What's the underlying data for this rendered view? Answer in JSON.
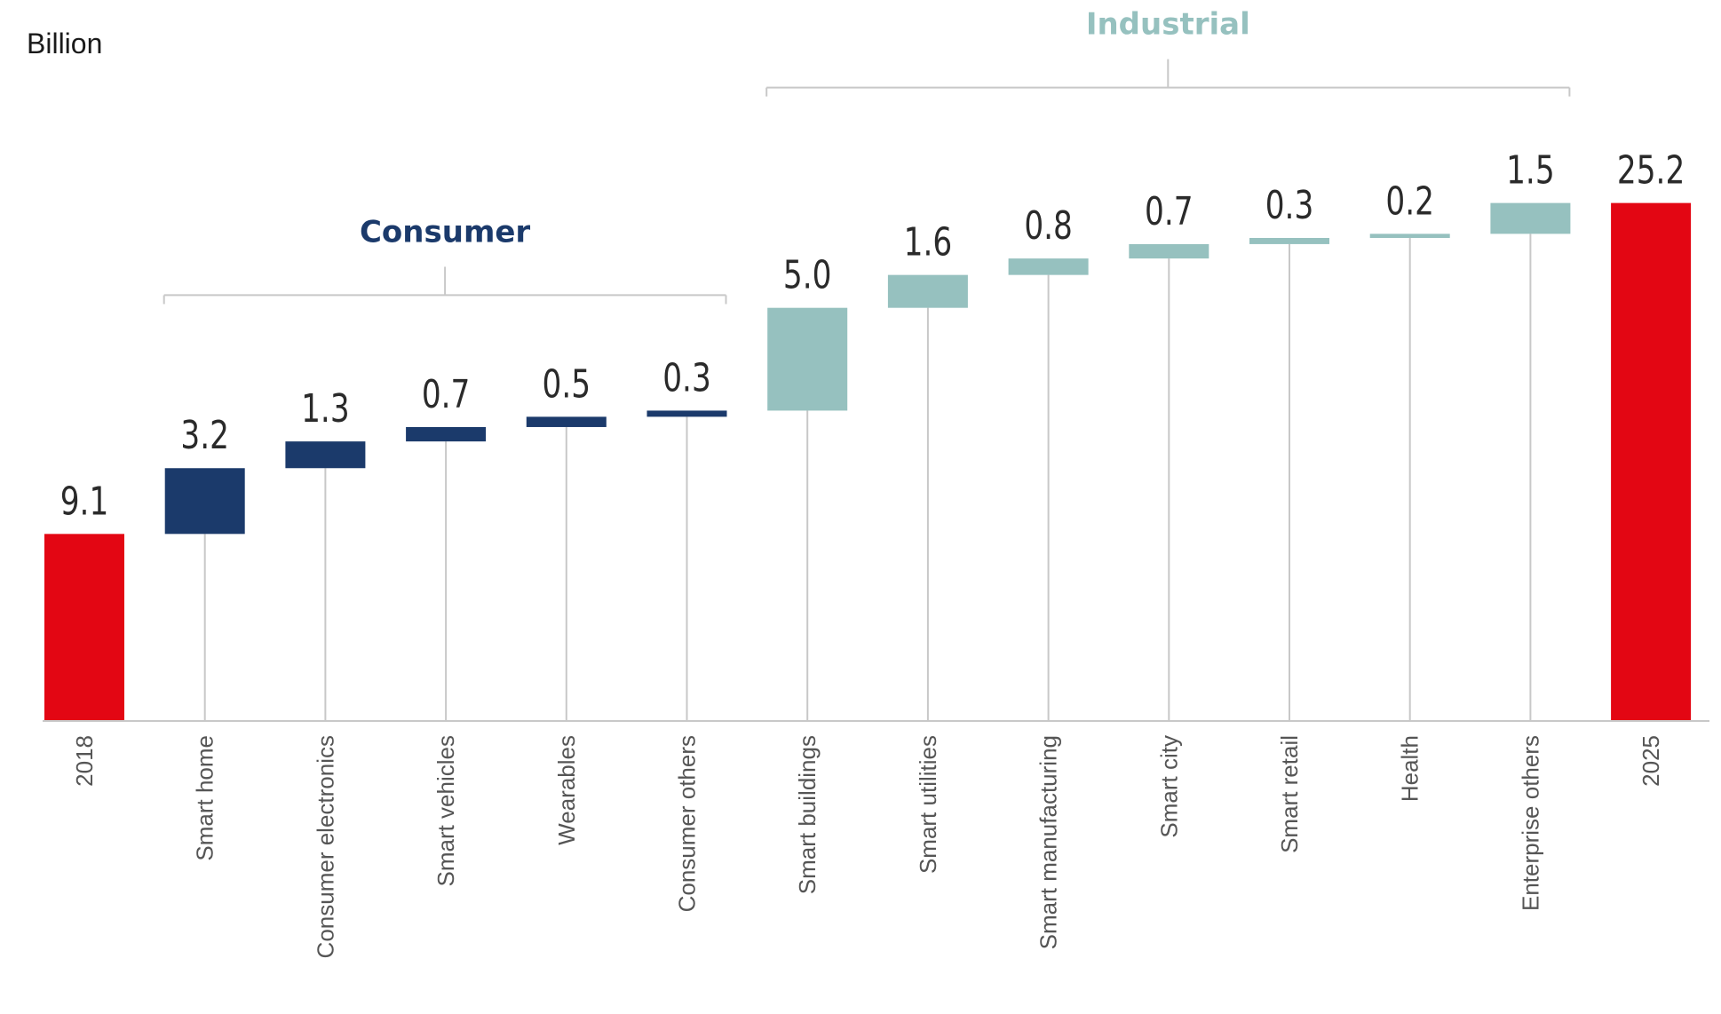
{
  "colors": {
    "total": "#e30613",
    "consumer": "#1b3a6b",
    "industrial": "#96c1bf",
    "connector": "#c8c8c8",
    "axis": "#c8c8c8",
    "bracket": "#c8c8c8"
  },
  "chart_data": {
    "type": "waterfall",
    "ylabel": "Billion",
    "ylim": [
      0,
      27
    ],
    "categories": [
      "2018",
      "Smart home",
      "Consumer electronics",
      "Smart vehicles",
      "Wearables",
      "Consumer others",
      "Smart buildings",
      "Smart utilities",
      "Smart manufacturing",
      "Smart city",
      "Smart retail",
      "Health",
      "Enterprise others",
      "2025"
    ],
    "values": [
      9.1,
      3.2,
      1.3,
      0.7,
      0.5,
      0.3,
      5.0,
      1.6,
      0.8,
      0.7,
      0.3,
      0.2,
      1.5,
      25.2
    ],
    "value_labels": [
      "9.1",
      "3.2",
      "1.3",
      "0.7",
      "0.5",
      "0.3",
      "5.0",
      "1.6",
      "0.8",
      "0.7",
      "0.3",
      "0.2",
      "1.5",
      "25.2"
    ],
    "kinds": [
      "total",
      "consumer",
      "consumer",
      "consumer",
      "consumer",
      "consumer",
      "industrial",
      "industrial",
      "industrial",
      "industrial",
      "industrial",
      "industrial",
      "industrial",
      "total"
    ],
    "groups": [
      {
        "label": "Consumer",
        "first": 1,
        "last": 5,
        "kind": "consumer"
      },
      {
        "label": "Industrial",
        "first": 6,
        "last": 12,
        "kind": "industrial"
      }
    ]
  }
}
